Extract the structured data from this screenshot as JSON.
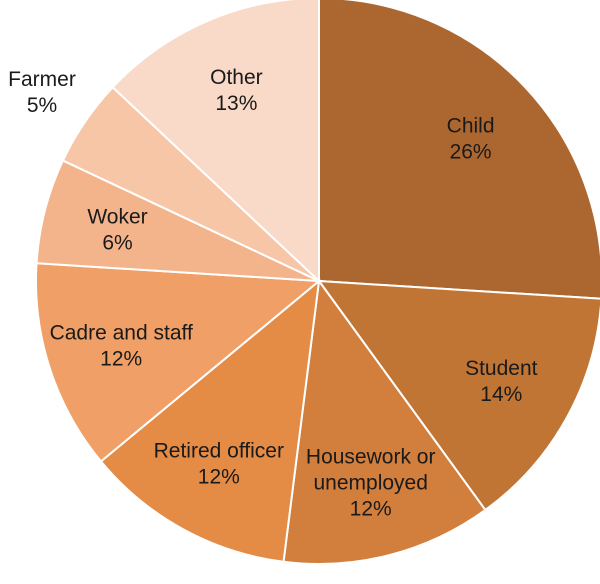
{
  "chart_data": {
    "type": "pie",
    "title": "",
    "start": "top",
    "direction": "clockwise",
    "slices": [
      {
        "label": "Child",
        "percent_label": "26%",
        "value": 26,
        "color": "#AC6730",
        "label_lines": [
          "Child"
        ]
      },
      {
        "label": "Student",
        "percent_label": "14%",
        "value": 14,
        "color": "#C07535",
        "label_lines": [
          "Student"
        ]
      },
      {
        "label": "Housework or unemployed",
        "percent_label": "12%",
        "value": 12,
        "color": "#D27E3C",
        "label_lines": [
          "Housework or",
          "unemployed"
        ]
      },
      {
        "label": "Retired officer",
        "percent_label": "12%",
        "value": 12,
        "color": "#E48B46",
        "label_lines": [
          "Retired officer"
        ]
      },
      {
        "label": "Cadre and staff",
        "percent_label": "12%",
        "value": 12,
        "color": "#F09F66",
        "label_lines": [
          "Cadre and staff"
        ]
      },
      {
        "label": "Woker",
        "percent_label": "6%",
        "value": 6,
        "color": "#F3B48C",
        "label_lines": [
          "Woker"
        ]
      },
      {
        "label": "Farmer",
        "percent_label": "5%",
        "value": 5,
        "color": "#F6C6A7",
        "label_lines": [
          "Farmer"
        ]
      },
      {
        "label": "Other",
        "percent_label": "13%",
        "value": 13,
        "color": "#F9D9C8",
        "label_lines": [
          "Other"
        ]
      }
    ]
  }
}
